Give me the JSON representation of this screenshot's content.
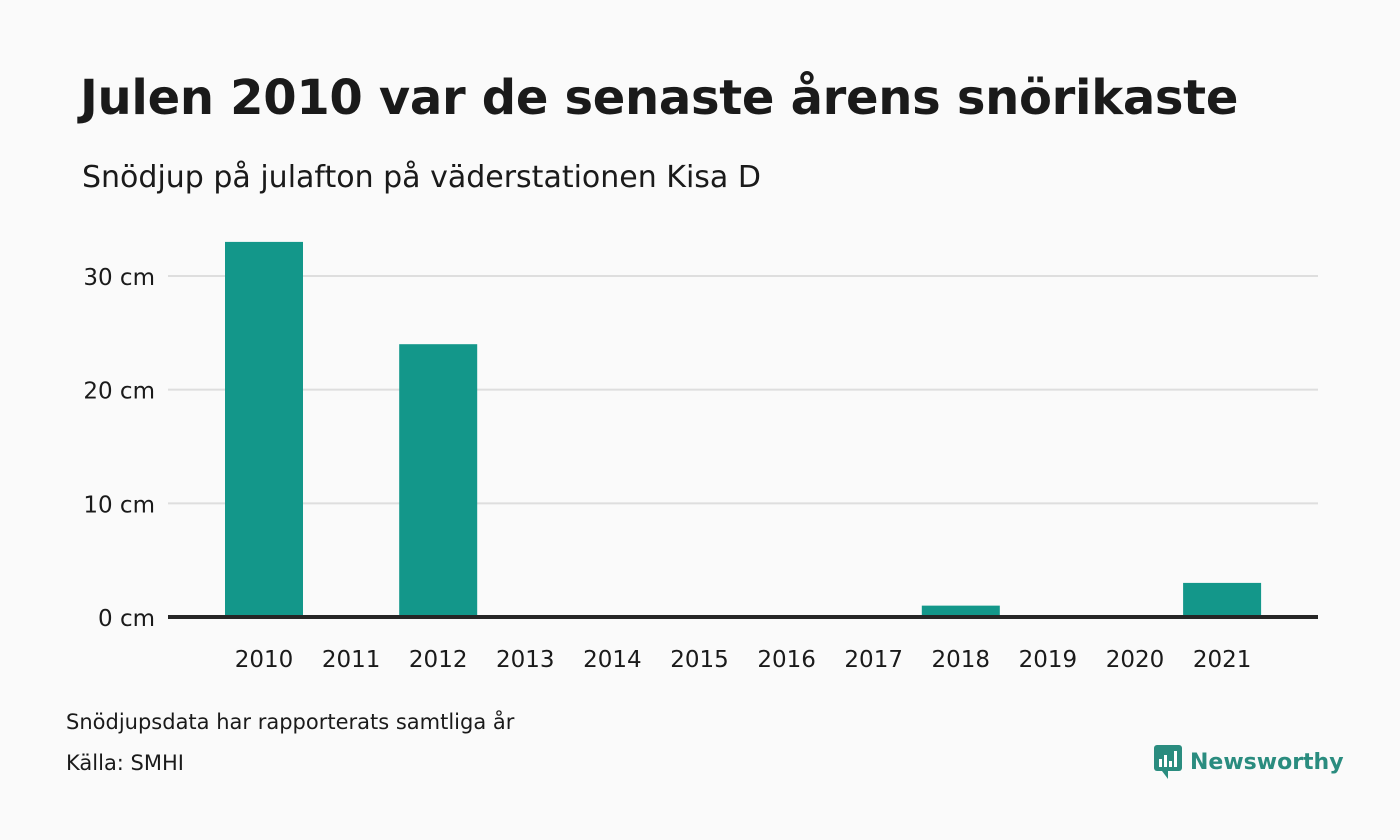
{
  "title": "Julen 2010 var de senaste årens snörikaste",
  "subtitle": "Snödjup på julafton på väderstationen Kisa D",
  "footnotes": {
    "note": "Snödjupsdata har rapporterats samtliga år",
    "source": "Källa: SMHI"
  },
  "brand": {
    "name": "Newsworthy",
    "icon": "newsworthy-logo-icon",
    "color": "#2a8c7f"
  },
  "chart_data": {
    "type": "bar",
    "categories": [
      "2010",
      "2011",
      "2012",
      "2013",
      "2014",
      "2015",
      "2016",
      "2017",
      "2018",
      "2019",
      "2020",
      "2021"
    ],
    "values": [
      33,
      0,
      24,
      0,
      0,
      0,
      0,
      0,
      1,
      0,
      0,
      3
    ],
    "ylim": [
      0,
      30
    ],
    "yticks": [
      0,
      10,
      20,
      30
    ],
    "ytick_labels": [
      "0 cm",
      "10 cm",
      "20 cm",
      "30 cm"
    ],
    "bar_color": "#13978a",
    "grid": true,
    "xlabel": "",
    "ylabel": ""
  }
}
